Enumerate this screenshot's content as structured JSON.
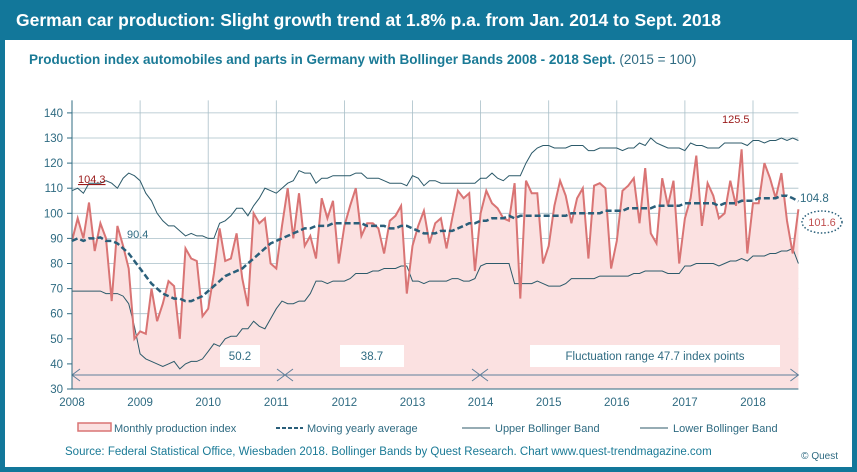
{
  "header": {
    "title": "German car production: Slight growth trend at 1.8% p.a. from Jan. 2014 to Sept. 2018"
  },
  "subtitle": {
    "main": "Production index automobiles and parts in Germany with Bollinger Bands 2008  - 2018 Sept.",
    "base": "(2015 = 100)"
  },
  "footer": {
    "source": "Source: Federal Statistical Office, Wiesbaden 2018. Bollinger Bands by Quest Research. Chart www.quest-trendmagazine.com",
    "copyright": "© Quest"
  },
  "chart_data": {
    "type": "line",
    "start": "2008-01",
    "end": "2018-09",
    "frequency": "monthly",
    "xlim": [
      2008,
      2018.75
    ],
    "ylim": [
      30,
      140
    ],
    "grid": true,
    "legend_placement": "bottom",
    "x_ticks": [
      "2008",
      "2009",
      "2010",
      "2011",
      "2012",
      "2013",
      "2014",
      "2015",
      "2016",
      "2017",
      "2018"
    ],
    "y_ticks": [
      30,
      40,
      50,
      60,
      70,
      80,
      90,
      100,
      110,
      120,
      130,
      140
    ],
    "colors": {
      "production": "#d97474",
      "production_fill": "#fbe1e1",
      "average": "#2a5f7a",
      "bands": "#2c5a6a",
      "header": "#12779a"
    },
    "series": [
      {
        "name": "Monthly production index",
        "values": [
          89,
          98,
          90,
          104.3,
          85,
          96,
          90,
          65,
          95,
          87,
          78,
          50,
          53,
          52,
          70,
          57,
          64,
          73,
          71,
          50,
          86,
          82,
          81,
          59,
          62,
          76,
          94,
          81,
          82,
          92,
          74,
          63,
          100,
          96,
          98,
          80,
          78,
          95,
          110,
          90,
          108,
          87,
          91,
          82,
          106,
          98,
          105,
          80,
          95,
          103,
          110,
          91,
          96,
          96,
          94,
          84,
          97,
          99,
          103,
          68,
          87,
          95,
          101,
          88,
          96,
          98,
          86,
          98,
          109,
          106,
          108,
          77,
          100,
          109,
          104,
          102,
          98,
          97,
          112,
          66,
          113,
          108,
          108,
          80,
          87,
          103,
          113,
          107,
          96,
          106,
          110,
          82,
          111,
          112,
          110,
          78,
          89,
          109,
          111,
          114,
          96,
          118,
          92,
          88,
          114,
          103,
          113,
          80,
          98,
          106,
          123,
          95,
          112,
          107,
          98,
          100,
          113,
          103,
          125.5,
          84,
          104,
          104,
          120,
          114,
          106,
          116,
          97,
          84,
          101.6
        ]
      },
      {
        "name": "Moving yearly average",
        "values": [
          89,
          90,
          89,
          90,
          90,
          90.4,
          89,
          89,
          88,
          86,
          84,
          81,
          78,
          75,
          72,
          70,
          68,
          67,
          66,
          66,
          65,
          65,
          66,
          67,
          69,
          71,
          73,
          75,
          76,
          77,
          78,
          80,
          82,
          84,
          86,
          88,
          89,
          90,
          91,
          92,
          93,
          94,
          94,
          95,
          95,
          95,
          96,
          96,
          96,
          96,
          96,
          96,
          95,
          95,
          95,
          95,
          94,
          94,
          95,
          95,
          94,
          93,
          92,
          92,
          92,
          93,
          93,
          93,
          94,
          95,
          96,
          96,
          97,
          97,
          98,
          98,
          98,
          99,
          98,
          99,
          99,
          99,
          99,
          99,
          99,
          99,
          99,
          99,
          100,
          100,
          100,
          100,
          100,
          100,
          101,
          101,
          101,
          101,
          102,
          102,
          102,
          102,
          102,
          103,
          103,
          103,
          103,
          103,
          104,
          104,
          104,
          104,
          104,
          104,
          103,
          104,
          104,
          104,
          105,
          105,
          105,
          106,
          106,
          106,
          106,
          107,
          107,
          106,
          104.8
        ]
      },
      {
        "name": "Upper Bollinger Band",
        "values": [
          109,
          110,
          108,
          112,
          112,
          112,
          113,
          112,
          110,
          114,
          116,
          115,
          113,
          108,
          105,
          100,
          97,
          95,
          95,
          93,
          91,
          92,
          91,
          91,
          90,
          90,
          96,
          97,
          99,
          102,
          102,
          99,
          103,
          106,
          110,
          109,
          108,
          110,
          112,
          113,
          117,
          116,
          116,
          112,
          114,
          114,
          115,
          115,
          115,
          115,
          116,
          116,
          114,
          114,
          114,
          113,
          112,
          112,
          112,
          111,
          115,
          114,
          111,
          113,
          113,
          112,
          112,
          112,
          112,
          112,
          112,
          112,
          114,
          114,
          116,
          114,
          113,
          115,
          115,
          115,
          120,
          124,
          126,
          127,
          127,
          126,
          126,
          126,
          127,
          127,
          127,
          125,
          125,
          126,
          126,
          126,
          126,
          125,
          126,
          126,
          128,
          127,
          130,
          128,
          127,
          126,
          126,
          126,
          125,
          128,
          127,
          127,
          126,
          126,
          126,
          128,
          128,
          128,
          128,
          127,
          129,
          129,
          128,
          129,
          129,
          130,
          129,
          130,
          129
        ]
      },
      {
        "name": "Lower Bollinger Band",
        "values": [
          69,
          69,
          69,
          69,
          69,
          69,
          68,
          68,
          68,
          67,
          64,
          55,
          44,
          42,
          41,
          40,
          39,
          40,
          41,
          38,
          40,
          41,
          41,
          42,
          45,
          48,
          47,
          50,
          51,
          51,
          54,
          54,
          57,
          55,
          54,
          58,
          62,
          65,
          64,
          64,
          65,
          65,
          68,
          73,
          73,
          72,
          73,
          73,
          73,
          74,
          76,
          76,
          76,
          77,
          77,
          78,
          78,
          78,
          79,
          79,
          73,
          73,
          72,
          73,
          73,
          73,
          73,
          74,
          74,
          73,
          73,
          74,
          79,
          80,
          80,
          80,
          80,
          80,
          72,
          72,
          72,
          72,
          73,
          72,
          71,
          71,
          71,
          72,
          74,
          74,
          74,
          74,
          74,
          75,
          75,
          75,
          75,
          75,
          75,
          76,
          76,
          77,
          77,
          77,
          77,
          76,
          76,
          76,
          79,
          79,
          80,
          80,
          80,
          80,
          79,
          80,
          81,
          81,
          82,
          81,
          83,
          83,
          83,
          84,
          84,
          85,
          85,
          86,
          80
        ]
      }
    ],
    "annotations": {
      "first_value": "104.3",
      "average_label": "90.4",
      "max_label": "125.5",
      "last_average": "104.8",
      "last_value": "101.6",
      "range1": "50.2",
      "range2": "38.7",
      "range3": "Fluctuation range 47.7 index points"
    }
  }
}
